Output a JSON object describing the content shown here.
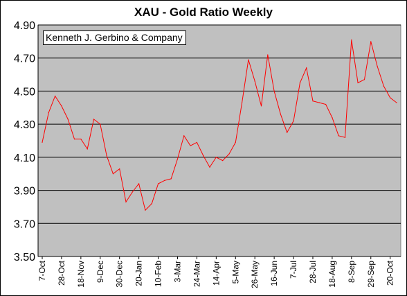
{
  "chart_data": {
    "type": "line",
    "title": "XAU - Gold Ratio Weekly",
    "annotation": "Kenneth J. Gerbino & Company",
    "ylim": [
      3.5,
      4.9
    ],
    "yticks": [
      "4.90",
      "4.70",
      "4.50",
      "4.30",
      "4.10",
      "3.90",
      "3.70",
      "3.50"
    ],
    "ytick_values": [
      4.9,
      4.7,
      4.5,
      4.3,
      4.1,
      3.9,
      3.7,
      3.5
    ],
    "xtick_labels": [
      "7-Oct",
      "28-Oct",
      "18-Nov",
      "9-Dec",
      "30-Dec",
      "20-Jan",
      "10-Feb",
      "3-Mar",
      "24-Mar",
      "14-Apr",
      "5-May",
      "26-May",
      "16-Jun",
      "7-Jul",
      "28-Jul",
      "18-Aug",
      "8-Sep",
      "29-Sep",
      "20-Oct"
    ],
    "grid": true,
    "colors": {
      "plot_bg": "#c0c0c0",
      "line": "#ff0000",
      "grid": "#000000"
    },
    "series": [
      {
        "values": [
          4.19,
          4.37,
          4.47,
          4.41,
          4.33,
          4.21,
          4.21,
          4.15,
          4.33,
          4.3,
          4.11,
          4.0,
          4.03,
          3.83,
          3.89,
          3.94,
          3.78,
          3.82,
          3.94,
          3.96,
          3.97,
          4.09,
          4.23,
          4.17,
          4.19,
          4.11,
          4.04,
          4.1,
          4.08,
          4.12,
          4.19,
          4.43,
          4.69,
          4.56,
          4.41,
          4.72,
          4.5,
          4.36,
          4.25,
          4.32,
          4.55,
          4.64,
          4.44,
          4.43,
          4.42,
          4.34,
          4.23,
          4.22,
          4.81,
          4.55,
          4.57,
          4.8,
          4.65,
          4.53,
          4.46,
          4.43
        ]
      }
    ]
  }
}
